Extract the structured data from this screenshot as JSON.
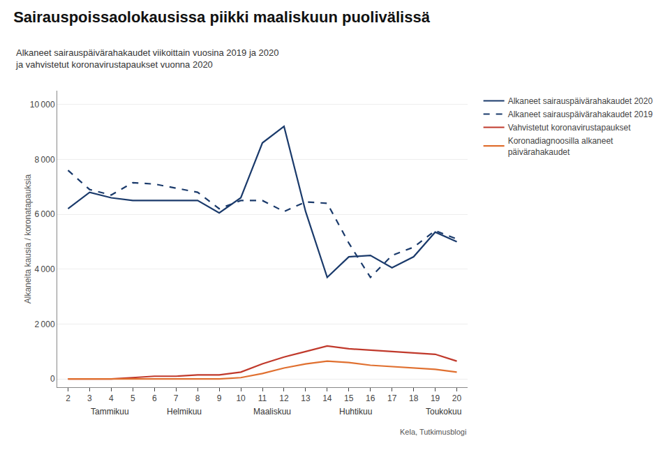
{
  "chart_data": {
    "type": "line",
    "title": "Sairauspoissaolokausissa piikki maaliskuun puolivälissä",
    "subtitle": "Alkaneet sairauspäivärahakaudet viikoittain vuosina 2019 ja 2020\nja vahvistetut koronavirustapaukset vuonna 2020",
    "ylabel": "Alkaneita kausia / koronatapauksia",
    "source": "Kela, Tutkimusblogi",
    "x": [
      2,
      3,
      4,
      5,
      6,
      7,
      8,
      9,
      10,
      11,
      12,
      13,
      14,
      15,
      16,
      17,
      18,
      19,
      20
    ],
    "series": [
      {
        "name": "Alkaneet sairauspäivärahakaudet 2020",
        "color": "#1a3a6b",
        "line_style": "solid",
        "values": [
          6200,
          6800,
          6600,
          6500,
          6500,
          6500,
          6500,
          6050,
          6600,
          8600,
          9200,
          6100,
          3700,
          4450,
          4500,
          4050,
          4450,
          5350,
          5000
        ]
      },
      {
        "name": "Alkaneet sairauspäivärahakaudet 2019",
        "color": "#1a3a6b",
        "line_style": "dashed",
        "values": [
          7600,
          6900,
          6700,
          7150,
          7100,
          6950,
          6800,
          6200,
          6500,
          6500,
          6100,
          6450,
          6400,
          4950,
          3700,
          4500,
          4800,
          5400,
          5100
        ]
      },
      {
        "name": "Vahvistetut koronavirustapaukset",
        "color": "#c0392b",
        "line_style": "solid",
        "values": [
          0,
          0,
          0,
          50,
          100,
          100,
          150,
          150,
          250,
          550,
          800,
          1000,
          1200,
          1100,
          1050,
          1000,
          950,
          900,
          650
        ]
      },
      {
        "name": "Koronadiagnoosilla alkaneet\npäivärahakaudet",
        "color": "#e07030",
        "line_style": "solid",
        "values": [
          0,
          0,
          0,
          0,
          0,
          0,
          0,
          0,
          50,
          200,
          400,
          550,
          650,
          600,
          500,
          450,
          400,
          350,
          250
        ]
      }
    ],
    "xlim": [
      1.5,
      20.5
    ],
    "xticks": [
      2,
      3,
      4,
      5,
      6,
      7,
      8,
      9,
      10,
      11,
      12,
      13,
      14,
      15,
      16,
      17,
      18,
      19,
      20
    ],
    "ylim": [
      -300,
      10500
    ],
    "yticks": [
      0,
      {
        "value": 2000,
        "label": "2 000"
      },
      {
        "value": 4000,
        "label": "4 000"
      },
      {
        "value": 6000,
        "label": "6 000"
      },
      {
        "value": 8000,
        "label": "8 000"
      },
      {
        "value": 10000,
        "label": "10 000"
      }
    ],
    "grid": "y",
    "legend": "right",
    "annotations": [
      {
        "text": "Tammikuu",
        "x": 3
      },
      {
        "text": "Helmikuu",
        "x": 6.5
      },
      {
        "text": "Maaliskuu",
        "x": 10.5
      },
      {
        "text": "Huhtikuu",
        "x": 14.5
      },
      {
        "text": "Toukokuu",
        "x": 18.5
      }
    ]
  }
}
